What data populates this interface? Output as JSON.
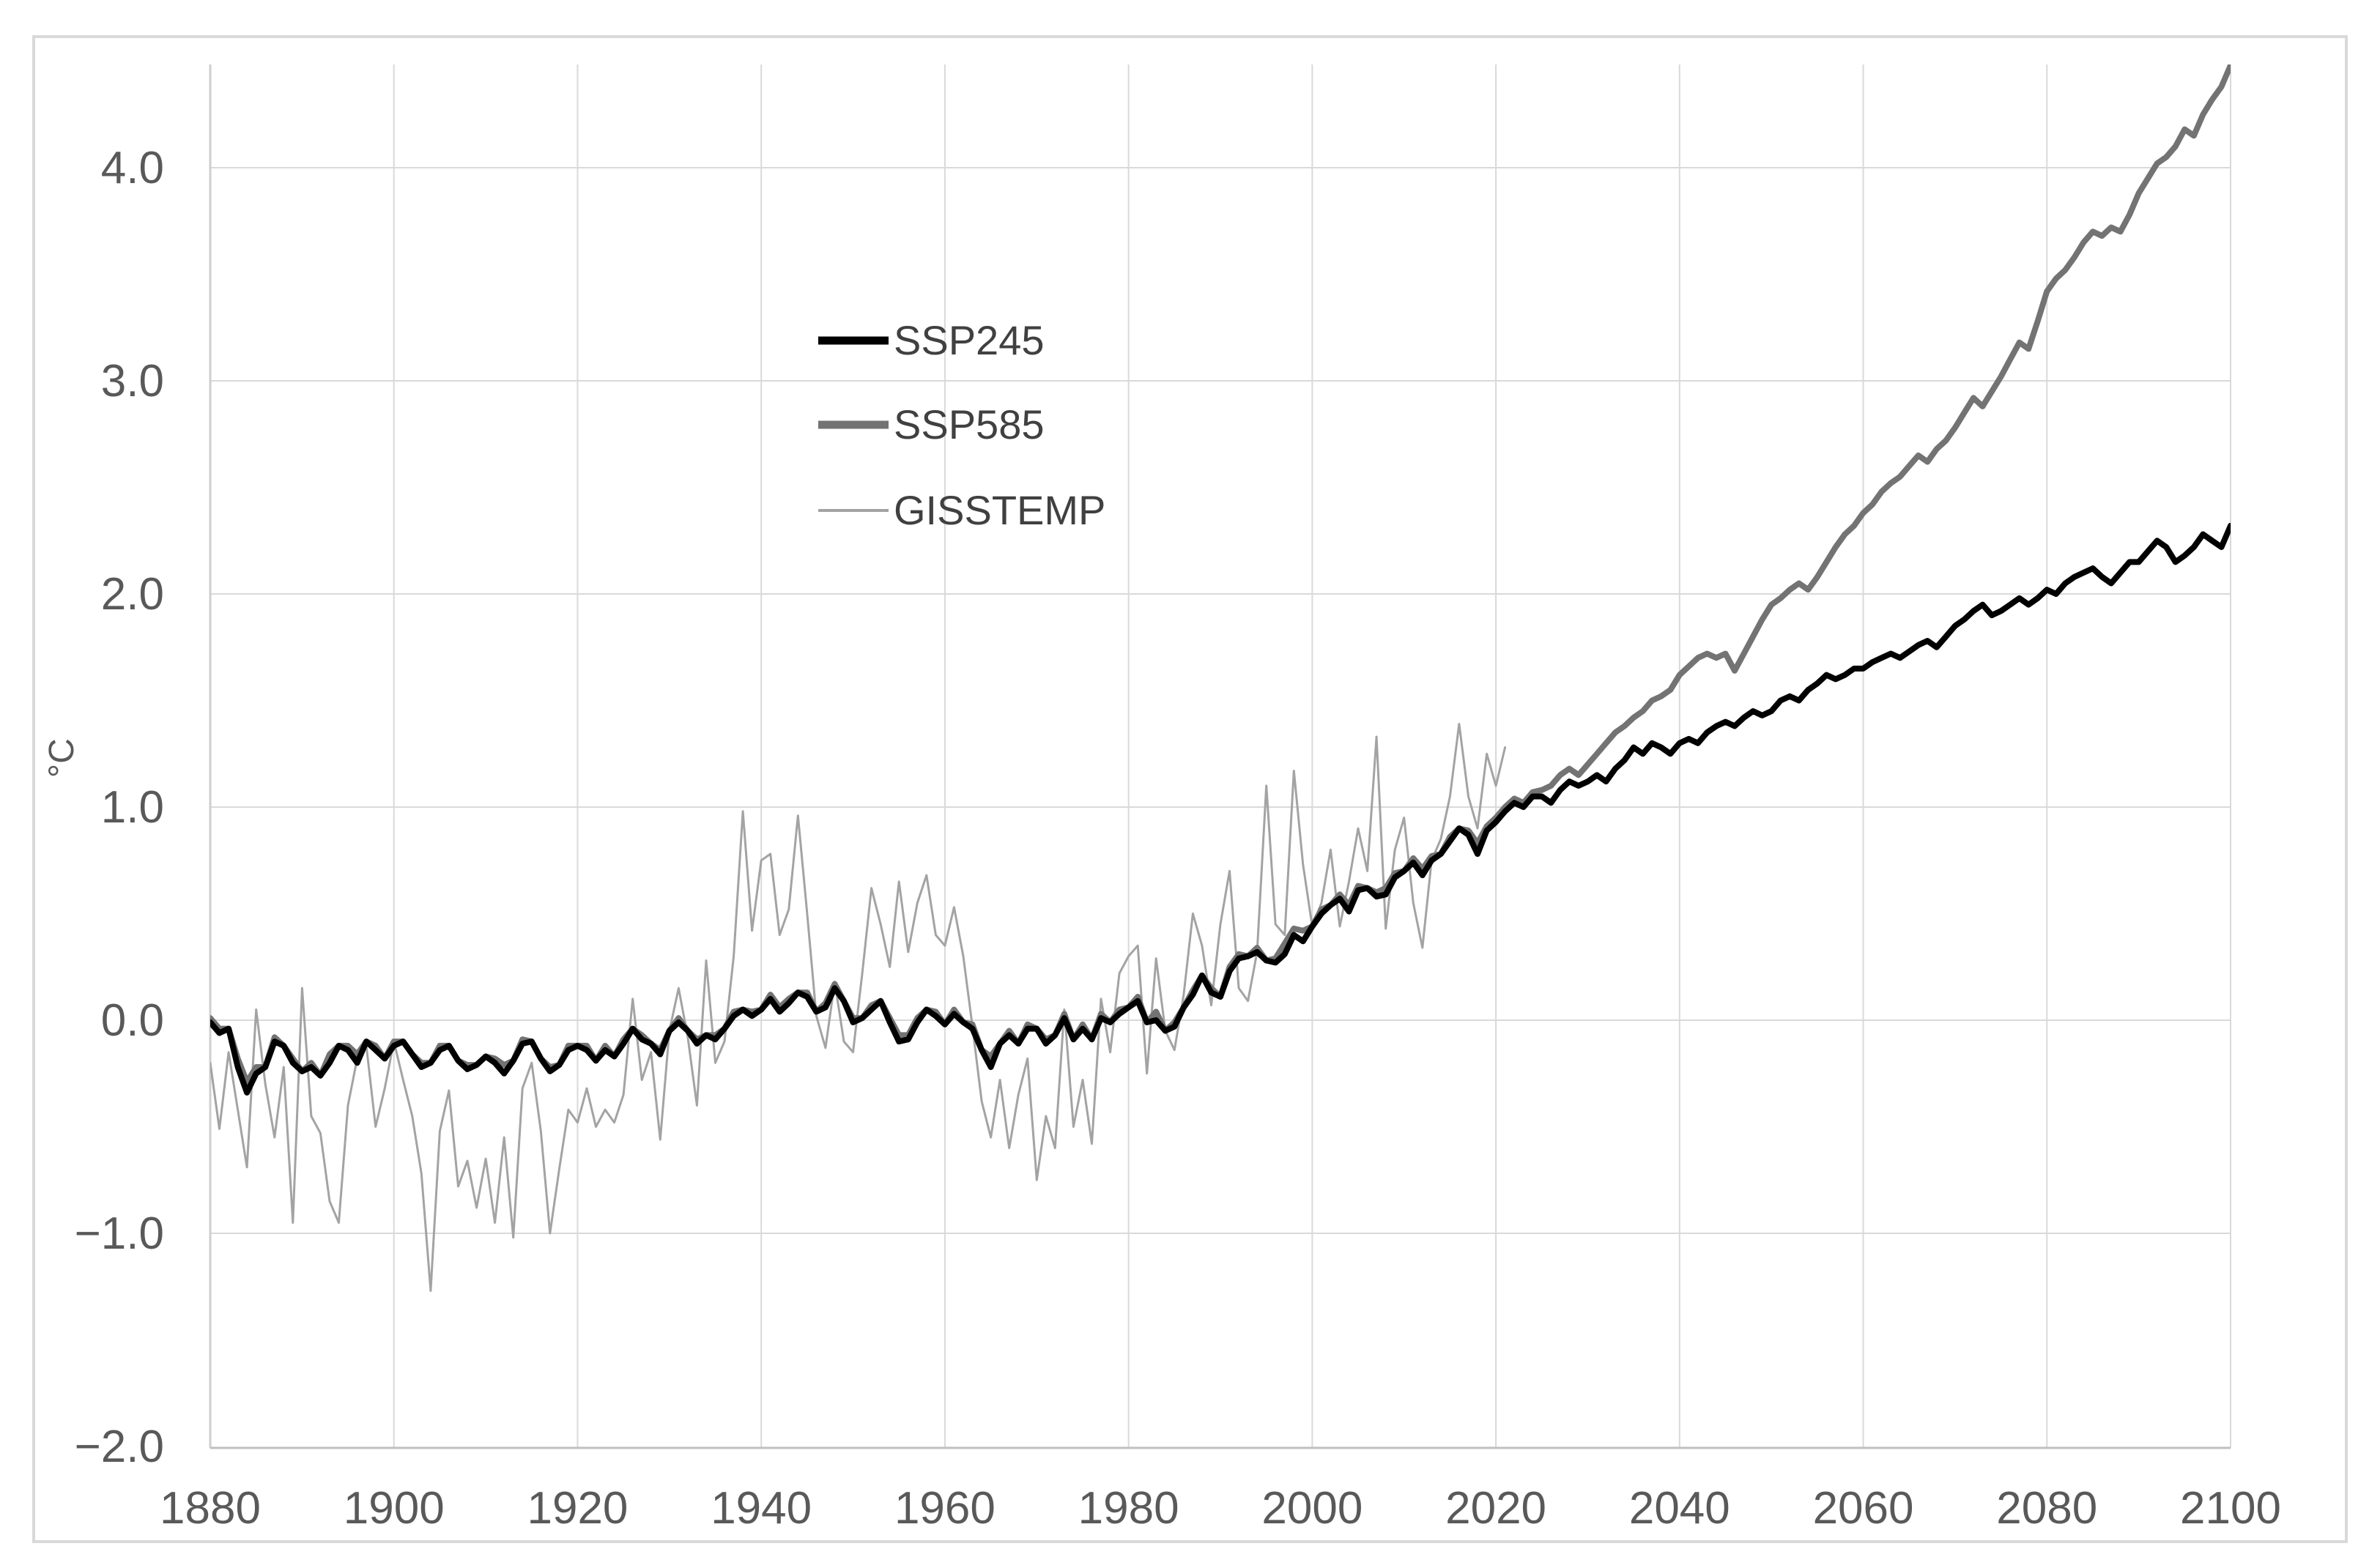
{
  "figure": {
    "background": "#ffffff",
    "border_color": "#d9d9d9",
    "gridline_color": "#d9d9d9",
    "axis_line_color": "#bfbfbf",
    "tick_text_color": "#595959",
    "legend_text_color": "#404040"
  },
  "axes": {
    "y_label": "°C",
    "y_ticks": [
      {
        "value": 4.0,
        "label": "4.0"
      },
      {
        "value": 3.0,
        "label": "3.0"
      },
      {
        "value": 2.0,
        "label": "2.0"
      },
      {
        "value": 1.0,
        "label": "1.0"
      },
      {
        "value": 0.0,
        "label": "0.0"
      },
      {
        "value": -1.0,
        "label": "−1.0"
      },
      {
        "value": -2.0,
        "label": "−2.0"
      }
    ],
    "x_ticks": [
      {
        "value": 1880,
        "label": "1880"
      },
      {
        "value": 1900,
        "label": "1900"
      },
      {
        "value": 1920,
        "label": "1920"
      },
      {
        "value": 1940,
        "label": "1940"
      },
      {
        "value": 1960,
        "label": "1960"
      },
      {
        "value": 1980,
        "label": "1980"
      },
      {
        "value": 2000,
        "label": "2000"
      },
      {
        "value": 2020,
        "label": "2020"
      },
      {
        "value": 2040,
        "label": "2040"
      },
      {
        "value": 2060,
        "label": "2060"
      },
      {
        "value": 2080,
        "label": "2080"
      },
      {
        "value": 2100,
        "label": "2100"
      }
    ]
  },
  "chart_data": {
    "type": "line",
    "title": "",
    "xlabel": "",
    "ylabel": "°C",
    "xlim": [
      1880,
      2100
    ],
    "ylim": [
      -2.0,
      4.48
    ],
    "grid": true,
    "legend_position": "inside-upper-left",
    "x_start": 1880,
    "x_step": 1,
    "series": [
      {
        "name": "SSP245",
        "color": "#000000",
        "line_width": 8,
        "legend_swatch_width": 11,
        "start_year": 1880,
        "end_year": 2100,
        "values": [
          -0.01,
          -0.06,
          -0.04,
          -0.22,
          -0.34,
          -0.25,
          -0.22,
          -0.1,
          -0.12,
          -0.2,
          -0.24,
          -0.22,
          -0.26,
          -0.2,
          -0.12,
          -0.14,
          -0.2,
          -0.1,
          -0.14,
          -0.18,
          -0.12,
          -0.1,
          -0.16,
          -0.22,
          -0.2,
          -0.14,
          -0.12,
          -0.19,
          -0.23,
          -0.21,
          -0.17,
          -0.2,
          -0.25,
          -0.19,
          -0.11,
          -0.1,
          -0.18,
          -0.24,
          -0.21,
          -0.14,
          -0.12,
          -0.14,
          -0.19,
          -0.14,
          -0.17,
          -0.11,
          -0.04,
          -0.09,
          -0.11,
          -0.16,
          -0.05,
          -0.01,
          -0.05,
          -0.11,
          -0.07,
          -0.09,
          -0.04,
          0.02,
          0.05,
          0.02,
          0.05,
          0.1,
          0.04,
          0.08,
          0.13,
          0.11,
          0.04,
          0.06,
          0.15,
          0.09,
          -0.01,
          0.01,
          0.05,
          0.09,
          -0.01,
          -0.1,
          -0.09,
          -0.01,
          0.05,
          0.02,
          -0.02,
          0.03,
          -0.01,
          -0.04,
          -0.14,
          -0.22,
          -0.11,
          -0.07,
          -0.11,
          -0.04,
          -0.04,
          -0.11,
          -0.07,
          0.01,
          -0.09,
          -0.04,
          -0.09,
          0.01,
          -0.01,
          0.03,
          0.06,
          0.09,
          -0.01,
          0.0,
          -0.05,
          -0.03,
          0.06,
          0.12,
          0.21,
          0.13,
          0.11,
          0.23,
          0.29,
          0.3,
          0.32,
          0.28,
          0.27,
          0.31,
          0.4,
          0.37,
          0.44,
          0.5,
          0.54,
          0.57,
          0.51,
          0.61,
          0.62,
          0.58,
          0.59,
          0.67,
          0.7,
          0.74,
          0.68,
          0.75,
          0.78,
          0.84,
          0.9,
          0.87,
          0.78,
          0.89,
          0.93,
          0.98,
          1.02,
          1.0,
          1.05,
          1.05,
          1.02,
          1.08,
          1.12,
          1.1,
          1.12,
          1.15,
          1.12,
          1.18,
          1.22,
          1.28,
          1.25,
          1.3,
          1.28,
          1.25,
          1.3,
          1.32,
          1.3,
          1.35,
          1.38,
          1.4,
          1.38,
          1.42,
          1.45,
          1.43,
          1.45,
          1.5,
          1.52,
          1.5,
          1.55,
          1.58,
          1.62,
          1.6,
          1.62,
          1.65,
          1.65,
          1.68,
          1.7,
          1.72,
          1.7,
          1.73,
          1.76,
          1.78,
          1.75,
          1.8,
          1.85,
          1.88,
          1.92,
          1.95,
          1.9,
          1.92,
          1.95,
          1.98,
          1.95,
          1.98,
          2.02,
          2.0,
          2.05,
          2.08,
          2.1,
          2.12,
          2.08,
          2.05,
          2.1,
          2.15,
          2.15,
          2.2,
          2.25,
          2.22,
          2.15,
          2.18,
          2.22,
          2.28,
          2.25,
          2.22,
          2.32
        ]
      },
      {
        "name": "SSP585",
        "color": "#737373",
        "line_width": 8,
        "legend_swatch_width": 11,
        "start_year": 1880,
        "end_year": 2100,
        "values": [
          0.01,
          -0.04,
          -0.04,
          -0.18,
          -0.29,
          -0.22,
          -0.22,
          -0.08,
          -0.12,
          -0.18,
          -0.24,
          -0.2,
          -0.26,
          -0.16,
          -0.12,
          -0.12,
          -0.16,
          -0.1,
          -0.12,
          -0.18,
          -0.1,
          -0.1,
          -0.16,
          -0.2,
          -0.2,
          -0.12,
          -0.12,
          -0.19,
          -0.21,
          -0.21,
          -0.17,
          -0.18,
          -0.21,
          -0.19,
          -0.09,
          -0.1,
          -0.18,
          -0.22,
          -0.21,
          -0.12,
          -0.12,
          -0.12,
          -0.19,
          -0.12,
          -0.17,
          -0.09,
          -0.04,
          -0.07,
          -0.11,
          -0.14,
          -0.05,
          0.01,
          -0.05,
          -0.09,
          -0.07,
          -0.07,
          -0.04,
          0.04,
          0.05,
          0.04,
          0.05,
          0.12,
          0.06,
          0.1,
          0.13,
          0.13,
          0.04,
          0.08,
          0.17,
          0.09,
          0.01,
          0.01,
          0.07,
          0.09,
          0.01,
          -0.07,
          -0.07,
          0.01,
          0.05,
          0.04,
          -0.02,
          0.05,
          -0.01,
          -0.02,
          -0.14,
          -0.17,
          -0.11,
          -0.05,
          -0.11,
          -0.02,
          -0.04,
          -0.09,
          -0.07,
          0.03,
          -0.09,
          -0.02,
          -0.09,
          0.03,
          -0.01,
          0.05,
          0.06,
          0.11,
          -0.01,
          0.04,
          -0.05,
          -0.01,
          0.06,
          0.14,
          0.21,
          0.15,
          0.11,
          0.25,
          0.31,
          0.3,
          0.34,
          0.28,
          0.29,
          0.36,
          0.43,
          0.42,
          0.44,
          0.52,
          0.54,
          0.59,
          0.54,
          0.63,
          0.62,
          0.6,
          0.62,
          0.69,
          0.7,
          0.76,
          0.71,
          0.77,
          0.78,
          0.86,
          0.9,
          0.89,
          0.83,
          0.91,
          0.95,
          1.0,
          1.04,
          1.02,
          1.07,
          1.08,
          1.1,
          1.15,
          1.18,
          1.15,
          1.2,
          1.25,
          1.3,
          1.35,
          1.38,
          1.42,
          1.45,
          1.5,
          1.52,
          1.55,
          1.62,
          1.66,
          1.7,
          1.72,
          1.7,
          1.72,
          1.64,
          1.72,
          1.8,
          1.88,
          1.95,
          1.98,
          2.02,
          2.05,
          2.02,
          2.08,
          2.15,
          2.22,
          2.28,
          2.32,
          2.38,
          2.42,
          2.48,
          2.52,
          2.55,
          2.6,
          2.65,
          2.62,
          2.68,
          2.72,
          2.78,
          2.85,
          2.92,
          2.88,
          2.95,
          3.02,
          3.1,
          3.18,
          3.15,
          3.28,
          3.42,
          3.48,
          3.52,
          3.58,
          3.65,
          3.7,
          3.68,
          3.72,
          3.7,
          3.78,
          3.88,
          3.95,
          4.02,
          4.05,
          4.1,
          4.18,
          4.15,
          4.25,
          4.32,
          4.38,
          4.48
        ]
      },
      {
        "name": "GISSTEMP",
        "color": "#a3a3a3",
        "line_width": 3,
        "legend_swatch_width": 4,
        "start_year": 1880,
        "end_year": 2021,
        "values": [
          -0.2,
          -0.51,
          -0.15,
          -0.42,
          -0.69,
          0.05,
          -0.3,
          -0.55,
          -0.22,
          -0.95,
          0.15,
          -0.45,
          -0.53,
          -0.85,
          -0.95,
          -0.4,
          -0.18,
          -0.12,
          -0.5,
          -0.32,
          -0.1,
          -0.28,
          -0.45,
          -0.72,
          -1.27,
          -0.52,
          -0.33,
          -0.78,
          -0.66,
          -0.88,
          -0.65,
          -0.95,
          -0.55,
          -1.02,
          -0.32,
          -0.2,
          -0.52,
          -1.0,
          -0.7,
          -0.42,
          -0.48,
          -0.32,
          -0.5,
          -0.42,
          -0.48,
          -0.35,
          0.1,
          -0.28,
          -0.15,
          -0.56,
          -0.05,
          0.15,
          -0.08,
          -0.4,
          0.28,
          -0.2,
          -0.1,
          0.3,
          0.98,
          0.42,
          0.75,
          0.78,
          0.4,
          0.52,
          0.96,
          0.5,
          0.02,
          -0.13,
          0.18,
          -0.1,
          -0.15,
          0.22,
          0.62,
          0.45,
          0.25,
          0.65,
          0.32,
          0.55,
          0.68,
          0.4,
          0.35,
          0.53,
          0.3,
          -0.03,
          -0.38,
          -0.55,
          -0.28,
          -0.6,
          -0.35,
          -0.18,
          -0.75,
          -0.45,
          -0.6,
          0.05,
          -0.5,
          -0.28,
          -0.58,
          0.1,
          -0.15,
          0.22,
          0.3,
          0.35,
          -0.25,
          0.29,
          -0.05,
          -0.14,
          0.12,
          0.5,
          0.35,
          0.07,
          0.45,
          0.7,
          0.15,
          0.09,
          0.32,
          1.1,
          0.45,
          0.4,
          1.17,
          0.73,
          0.44,
          0.55,
          0.8,
          0.44,
          0.65,
          0.9,
          0.7,
          1.33,
          0.43,
          0.8,
          0.95,
          0.55,
          0.34,
          0.75,
          0.85,
          1.05,
          1.39,
          1.05,
          0.9,
          1.25,
          1.1,
          1.28
        ]
      }
    ]
  },
  "legend": {
    "entries": [
      "SSP245",
      "SSP585",
      "GISSTEMP"
    ]
  }
}
